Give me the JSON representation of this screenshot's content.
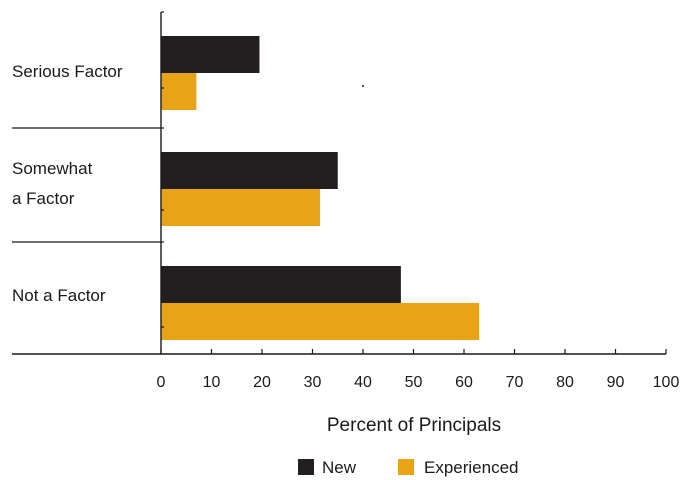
{
  "chart_data": {
    "type": "bar",
    "orientation": "horizontal",
    "categories": [
      "Serious Factor",
      "Somewhat\na Factor",
      "Not a Factor"
    ],
    "series": [
      {
        "name": "New",
        "values": [
          19.5,
          35,
          47.5
        ],
        "color": "#231f20"
      },
      {
        "name": "Experienced",
        "values": [
          7,
          31.5,
          63
        ],
        "color": "#e8a317"
      }
    ],
    "xlabel": "Percent of Principals",
    "ylabel": "",
    "xlim": [
      0,
      100
    ],
    "xticks": [
      0,
      10,
      20,
      30,
      40,
      50,
      60,
      70,
      80,
      90,
      100
    ],
    "grid": false,
    "legend_position": "bottom-center"
  }
}
